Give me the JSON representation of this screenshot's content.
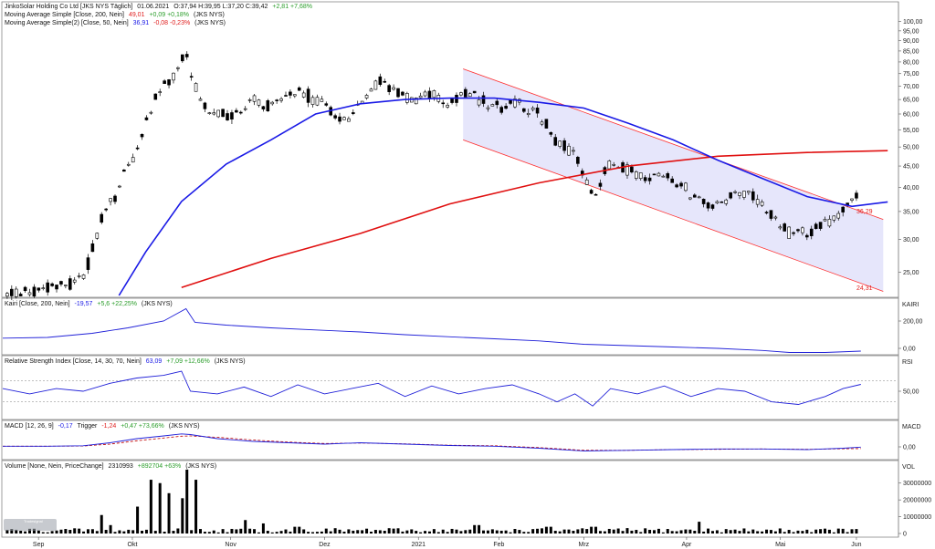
{
  "chart_data": {
    "type": "candlestick",
    "panels": {
      "price": {
        "header": {
          "title": "JinkoSolar Holding Co Ltd [JKS NYS Täglich]",
          "date": "01.06.2021",
          "ohlc": "O:37,94 H:39,95 L:37,20 C:39,42",
          "change": "+2,81 +7,68%"
        },
        "ma200_label": "Moving Average Simple [Close, 200, Nein]",
        "ma200_value": "49,01",
        "ma200_change": "+0,09 +0,18%",
        "ma50_label": "Moving Average Simple(2) [Close, 50, Nein]",
        "ma50_value": "36,91",
        "ma50_change": "-0,08 -0,23%",
        "instrument": "(JKS NYS)",
        "y_ticks": [
          "100,00",
          "95,00",
          "90,00",
          "85,00",
          "80,00",
          "75,00",
          "70,00",
          "65,00",
          "60,00",
          "55,00",
          "50,00",
          "45,00",
          "40,00",
          "35,00",
          "30,00",
          "25,00"
        ],
        "ylim": [
          22,
          105
        ],
        "scale": "log",
        "channel_annotations": [
          "36,29",
          "24,31"
        ],
        "channel_upper": [
          [
            0.515,
            77
          ],
          [
            0.985,
            33.5
          ]
        ],
        "channel_lower": [
          [
            0.515,
            52
          ],
          [
            0.985,
            22.5
          ]
        ],
        "ma200": [
          [
            0.2,
            23
          ],
          [
            0.3,
            27
          ],
          [
            0.4,
            31
          ],
          [
            0.5,
            36.5
          ],
          [
            0.6,
            41
          ],
          [
            0.7,
            45
          ],
          [
            0.8,
            47.5
          ],
          [
            0.9,
            48.5
          ],
          [
            0.99,
            49
          ]
        ],
        "ma50": [
          [
            0.13,
            22
          ],
          [
            0.16,
            28
          ],
          [
            0.2,
            37
          ],
          [
            0.25,
            45.5
          ],
          [
            0.3,
            52
          ],
          [
            0.35,
            60
          ],
          [
            0.4,
            63.5
          ],
          [
            0.45,
            65
          ],
          [
            0.5,
            65.5
          ],
          [
            0.55,
            65.5
          ],
          [
            0.6,
            64
          ],
          [
            0.65,
            62
          ],
          [
            0.7,
            57
          ],
          [
            0.75,
            52
          ],
          [
            0.8,
            46.5
          ],
          [
            0.85,
            42
          ],
          [
            0.9,
            38
          ],
          [
            0.95,
            36
          ],
          [
            0.99,
            36.9
          ]
        ],
        "close_path": [
          [
            0.0,
            22
          ],
          [
            0.05,
            23
          ],
          [
            0.09,
            24
          ],
          [
            0.11,
            33
          ],
          [
            0.13,
            40
          ],
          [
            0.15,
            50
          ],
          [
            0.17,
            65
          ],
          [
            0.19,
            75
          ],
          [
            0.205,
            84
          ],
          [
            0.215,
            70
          ],
          [
            0.23,
            60
          ],
          [
            0.26,
            60
          ],
          [
            0.28,
            65
          ],
          [
            0.3,
            62
          ],
          [
            0.33,
            68
          ],
          [
            0.36,
            63
          ],
          [
            0.38,
            57
          ],
          [
            0.4,
            62
          ],
          [
            0.42,
            72
          ],
          [
            0.44,
            68
          ],
          [
            0.46,
            64
          ],
          [
            0.48,
            68
          ],
          [
            0.5,
            63
          ],
          [
            0.52,
            68
          ],
          [
            0.54,
            64
          ],
          [
            0.56,
            63
          ],
          [
            0.58,
            64
          ],
          [
            0.6,
            60
          ],
          [
            0.62,
            52
          ],
          [
            0.64,
            48
          ],
          [
            0.66,
            38
          ],
          [
            0.68,
            46
          ],
          [
            0.7,
            44
          ],
          [
            0.72,
            42
          ],
          [
            0.74,
            43
          ],
          [
            0.76,
            40
          ],
          [
            0.78,
            37
          ],
          [
            0.8,
            36
          ],
          [
            0.82,
            39
          ],
          [
            0.84,
            38
          ],
          [
            0.86,
            34
          ],
          [
            0.88,
            31
          ],
          [
            0.9,
            31
          ],
          [
            0.92,
            33
          ],
          [
            0.94,
            35
          ],
          [
            0.95,
            36.5
          ],
          [
            0.96,
            39.4
          ]
        ]
      },
      "kairi": {
        "label": "Kairi [Close, 200, Nein]",
        "value": "-19,57",
        "change": "+5,6 +22,25%",
        "instrument": "(JKS NYS)",
        "axis_label": "KAIRI",
        "y_ticks": [
          "200,00",
          "0,00"
        ],
        "ylim": [
          -40,
          300
        ],
        "series": [
          [
            0.0,
            75
          ],
          [
            0.05,
            80
          ],
          [
            0.1,
            110
          ],
          [
            0.14,
            150
          ],
          [
            0.18,
            200
          ],
          [
            0.205,
            290
          ],
          [
            0.215,
            190
          ],
          [
            0.25,
            170
          ],
          [
            0.3,
            150
          ],
          [
            0.35,
            135
          ],
          [
            0.4,
            120
          ],
          [
            0.45,
            100
          ],
          [
            0.5,
            85
          ],
          [
            0.55,
            70
          ],
          [
            0.6,
            55
          ],
          [
            0.65,
            30
          ],
          [
            0.7,
            20
          ],
          [
            0.75,
            10
          ],
          [
            0.8,
            0
          ],
          [
            0.85,
            -15
          ],
          [
            0.88,
            -30
          ],
          [
            0.92,
            -30
          ],
          [
            0.96,
            -20
          ]
        ]
      },
      "rsi": {
        "label": "Relative Strength Index [Close, 14, 30, 70, Nein]",
        "value": "63,09",
        "change": "+7,09 +12,66%",
        "instrument": "(JKS NYS)",
        "axis_label": "RSI",
        "y_ticks": [
          "50,00"
        ],
        "ylim": [
          0,
          100
        ],
        "levels": [
          30,
          70
        ],
        "series": [
          [
            0.0,
            55
          ],
          [
            0.03,
            45
          ],
          [
            0.06,
            55
          ],
          [
            0.09,
            50
          ],
          [
            0.12,
            65
          ],
          [
            0.15,
            75
          ],
          [
            0.18,
            80
          ],
          [
            0.2,
            88
          ],
          [
            0.21,
            50
          ],
          [
            0.24,
            45
          ],
          [
            0.27,
            58
          ],
          [
            0.3,
            40
          ],
          [
            0.33,
            62
          ],
          [
            0.36,
            45
          ],
          [
            0.39,
            55
          ],
          [
            0.42,
            65
          ],
          [
            0.45,
            40
          ],
          [
            0.48,
            60
          ],
          [
            0.51,
            45
          ],
          [
            0.54,
            55
          ],
          [
            0.57,
            62
          ],
          [
            0.6,
            45
          ],
          [
            0.62,
            30
          ],
          [
            0.64,
            45
          ],
          [
            0.66,
            22
          ],
          [
            0.68,
            55
          ],
          [
            0.71,
            45
          ],
          [
            0.74,
            60
          ],
          [
            0.77,
            40
          ],
          [
            0.8,
            55
          ],
          [
            0.83,
            50
          ],
          [
            0.86,
            30
          ],
          [
            0.89,
            25
          ],
          [
            0.92,
            40
          ],
          [
            0.94,
            55
          ],
          [
            0.96,
            63
          ]
        ]
      },
      "macd": {
        "label": "MACD [12, 26, 9]",
        "value": "-0,17",
        "trigger_label": "Trigger",
        "trigger_value": "-1,24",
        "change": "+0,47 +73,66%",
        "instrument": "(JKS NYS)",
        "axis_label": "MACD",
        "y_ticks": [
          "0,00"
        ],
        "ylim": [
          -8,
          12
        ],
        "series": [
          [
            0.0,
            0.5
          ],
          [
            0.05,
            0.5
          ],
          [
            0.09,
            0.8
          ],
          [
            0.12,
            3
          ],
          [
            0.15,
            6
          ],
          [
            0.18,
            8
          ],
          [
            0.2,
            9.5
          ],
          [
            0.21,
            9
          ],
          [
            0.24,
            6
          ],
          [
            0.28,
            4
          ],
          [
            0.32,
            3
          ],
          [
            0.36,
            2
          ],
          [
            0.4,
            3
          ],
          [
            0.45,
            2
          ],
          [
            0.5,
            1
          ],
          [
            0.55,
            0.5
          ],
          [
            0.6,
            -1
          ],
          [
            0.65,
            -3
          ],
          [
            0.7,
            -2.5
          ],
          [
            0.75,
            -2
          ],
          [
            0.8,
            -1.5
          ],
          [
            0.85,
            -1.5
          ],
          [
            0.9,
            -2
          ],
          [
            0.94,
            -1
          ],
          [
            0.96,
            -0.17
          ]
        ],
        "trigger": [
          [
            0.0,
            0.5
          ],
          [
            0.05,
            0.5
          ],
          [
            0.09,
            0.6
          ],
          [
            0.12,
            2
          ],
          [
            0.15,
            4.5
          ],
          [
            0.18,
            6.5
          ],
          [
            0.2,
            7.8
          ],
          [
            0.21,
            8
          ],
          [
            0.24,
            7
          ],
          [
            0.28,
            5
          ],
          [
            0.32,
            3.5
          ],
          [
            0.36,
            2.5
          ],
          [
            0.4,
            2.8
          ],
          [
            0.45,
            2.2
          ],
          [
            0.5,
            1.2
          ],
          [
            0.55,
            0.8
          ],
          [
            0.6,
            -0.5
          ],
          [
            0.65,
            -2.5
          ],
          [
            0.7,
            -2.5
          ],
          [
            0.75,
            -2
          ],
          [
            0.8,
            -1.8
          ],
          [
            0.85,
            -1.5
          ],
          [
            0.9,
            -1.8
          ],
          [
            0.94,
            -1.4
          ],
          [
            0.96,
            -1.24
          ]
        ]
      },
      "volume": {
        "label": "Volume [None, Nein, PriceChange]",
        "value": "2310993",
        "change": "+892704 +63%",
        "instrument": "(JKS NYS)",
        "axis_label": "VOL",
        "y_ticks": [
          "30000000",
          "20000000",
          "10000000",
          "0"
        ],
        "ylim": [
          0,
          38000000
        ],
        "spikes": [
          [
            0.11,
            11000000
          ],
          [
            0.12,
            5000000
          ],
          [
            0.15,
            16000000
          ],
          [
            0.165,
            32000000
          ],
          [
            0.175,
            30000000
          ],
          [
            0.185,
            24000000
          ],
          [
            0.2,
            21000000
          ],
          [
            0.205,
            38000000
          ],
          [
            0.215,
            32000000
          ],
          [
            0.27,
            8000000
          ],
          [
            0.29,
            6000000
          ],
          [
            0.33,
            4000000
          ],
          [
            0.53,
            5000000
          ],
          [
            0.61,
            4000000
          ],
          [
            0.66,
            4000000
          ],
          [
            0.78,
            7000000
          ],
          [
            0.87,
            3000000
          ]
        ]
      }
    },
    "x_ticks": [
      "Sep",
      "Okt",
      "Nov",
      "Dez",
      "2021",
      "Feb",
      "Mrz",
      "Apr",
      "Mai",
      "Jun"
    ],
    "x_tick_pos": [
      0.04,
      0.145,
      0.255,
      0.36,
      0.465,
      0.555,
      0.65,
      0.765,
      0.87,
      0.955
    ]
  },
  "watermark": "Tradesignal",
  "colors": {
    "channel_fill": "#e6e6fb",
    "channel_line": "#ff3030",
    "ma50": "#1a1ae6",
    "ma200": "#e01010",
    "indicator": "#2020d8",
    "trigger": "#c00000",
    "candle": "#000000",
    "grid": "#cccccc"
  }
}
